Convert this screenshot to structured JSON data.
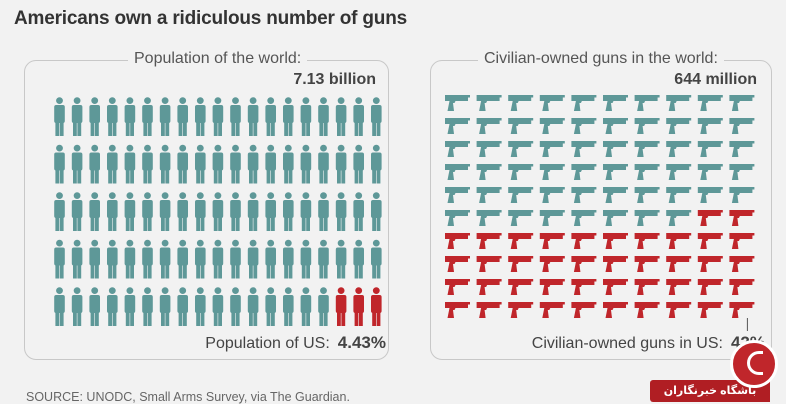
{
  "title": "Americans own a ridiculous number of guns",
  "source": "SOURCE: UNODC, Small Arms Survey, via The Guardian.",
  "colors": {
    "world": "#5e9898",
    "us": "#c0262b",
    "background": "#f2f2f2"
  },
  "logo": {
    "text": "باشگاه خبرنگاران"
  },
  "chart_data": [
    {
      "type": "pictogram",
      "icon": "person-icon",
      "title": "Population of the world:",
      "total_label": "7.13 billion",
      "share_label": "Population of US:",
      "share_value_label": "4.43%",
      "total": 7.13,
      "unit": "billion",
      "share_percent": 4.43,
      "rows": 5,
      "cols": 20,
      "highlighted_icons": 4
    },
    {
      "type": "pictogram",
      "icon": "pistol-icon",
      "title": "Civilian-owned guns in the world:",
      "total_label": "644 million",
      "share_label": "Civilian-owned guns in US:",
      "share_value_label": "42%",
      "total": 644,
      "unit": "million",
      "share_percent": 42,
      "rows": 10,
      "cols": 10,
      "highlighted_icons": 42
    }
  ]
}
